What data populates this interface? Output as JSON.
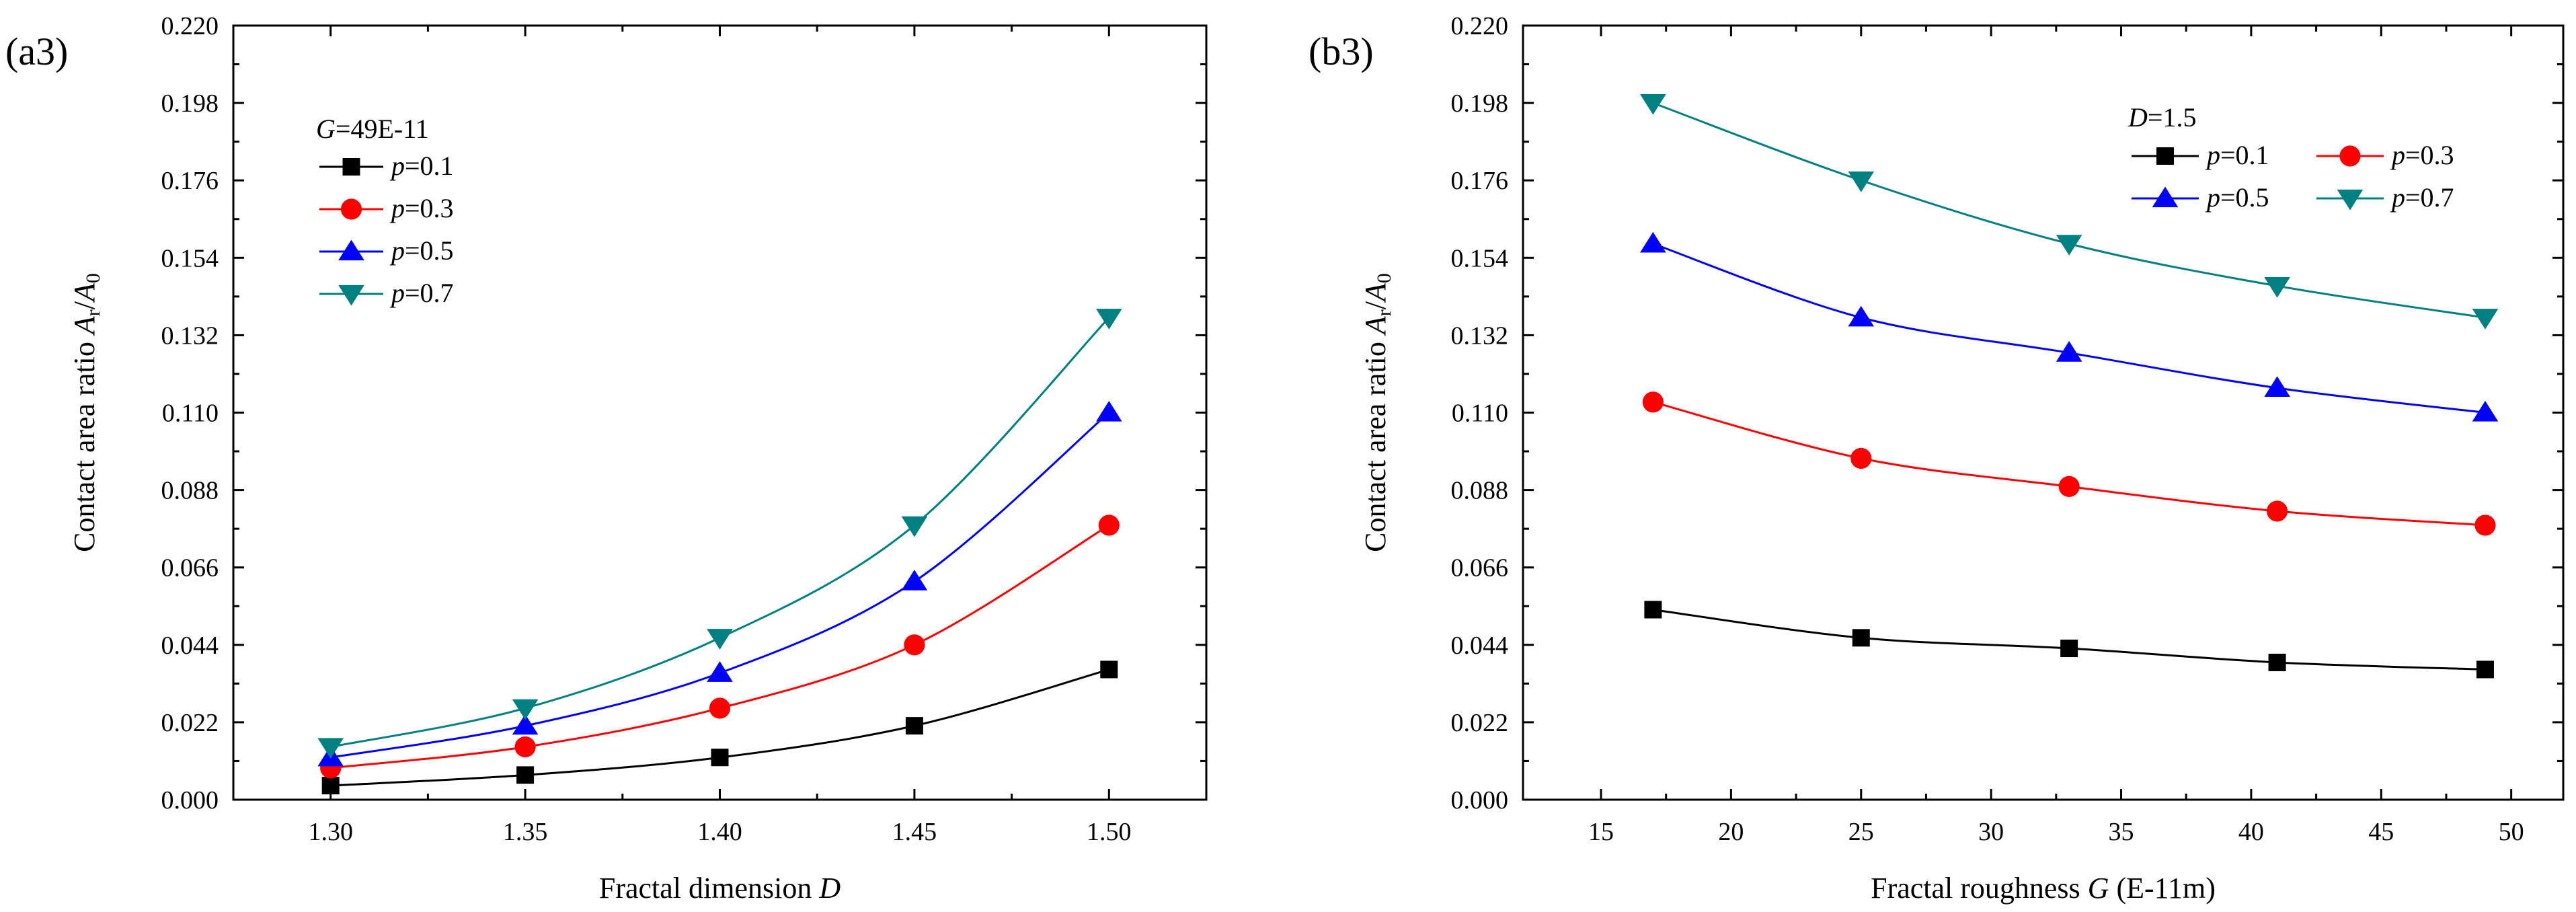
{
  "chart_data": [
    {
      "panel_label": "(a3)",
      "type": "line",
      "xlabel": {
        "main": "Fractal dimension ",
        "italic": "D",
        "suffix": ""
      },
      "ylabel": {
        "main": "Contact area ratio ",
        "a": "A",
        "asub": "r",
        "slash": "/",
        "b": "A",
        "bsub": "0"
      },
      "xlim": [
        1.275,
        1.525
      ],
      "ylim": [
        0.0,
        0.22
      ],
      "xticks": [
        1.3,
        1.35,
        1.4,
        1.45,
        1.5
      ],
      "xtick_labels": [
        "1.30",
        "1.35",
        "1.40",
        "1.45",
        "1.50"
      ],
      "yticks": [
        0.0,
        0.022,
        0.044,
        0.066,
        0.088,
        0.11,
        0.132,
        0.154,
        0.176,
        0.198,
        0.22
      ],
      "ytick_labels": [
        "0.000",
        "0.022",
        "0.044",
        "0.066",
        "0.088",
        "0.110",
        "0.132",
        "0.154",
        "0.176",
        "0.198",
        "0.220"
      ],
      "legend_title": {
        "italic": "G",
        "text": "=49E-11"
      },
      "legend_columns": 1,
      "x": [
        1.3,
        1.35,
        1.4,
        1.45,
        1.5
      ],
      "series": [
        {
          "name_italic": "p",
          "name_text": "=0.1",
          "marker": "square",
          "color": "#000000",
          "values": [
            0.004,
            0.007,
            0.012,
            0.021,
            0.037
          ]
        },
        {
          "name_italic": "p",
          "name_text": "=0.3",
          "marker": "circle",
          "color": "#ff0000",
          "values": [
            0.009,
            0.015,
            0.026,
            0.044,
            0.078
          ]
        },
        {
          "name_italic": "p",
          "name_text": "=0.5",
          "marker": "triangle-up",
          "color": "#0000ff",
          "values": [
            0.012,
            0.021,
            0.036,
            0.062,
            0.11
          ]
        },
        {
          "name_italic": "p",
          "name_text": "=0.7",
          "marker": "triangle-down",
          "color": "#008080",
          "values": [
            0.015,
            0.026,
            0.046,
            0.078,
            0.137
          ]
        }
      ]
    },
    {
      "panel_label": "(b3)",
      "type": "line",
      "xlabel": {
        "main": "Fractal roughness ",
        "italic": "G",
        "suffix": " (E-11m)"
      },
      "ylabel": {
        "main": "Contact area ratio ",
        "a": "A",
        "asub": "r",
        "slash": "/",
        "b": "A",
        "bsub": "0"
      },
      "xlim": [
        12,
        52
      ],
      "ylim": [
        0.0,
        0.22
      ],
      "xticks": [
        15,
        20,
        25,
        30,
        35,
        40,
        45,
        50
      ],
      "xtick_labels": [
        "15",
        "20",
        "25",
        "30",
        "35",
        "40",
        "45",
        "50"
      ],
      "yticks": [
        0.0,
        0.022,
        0.044,
        0.066,
        0.088,
        0.11,
        0.132,
        0.154,
        0.176,
        0.198,
        0.22
      ],
      "ytick_labels": [
        "0.000",
        "0.022",
        "0.044",
        "0.066",
        "0.088",
        "0.110",
        "0.132",
        "0.154",
        "0.176",
        "0.198",
        "0.220"
      ],
      "legend_title": {
        "italic": "D",
        "text": "=1.5"
      },
      "legend_columns": 2,
      "x": [
        17,
        25,
        33,
        41,
        49
      ],
      "series": [
        {
          "name_italic": "p",
          "name_text": "=0.1",
          "marker": "square",
          "color": "#000000",
          "values": [
            0.054,
            0.046,
            0.043,
            0.039,
            0.037
          ]
        },
        {
          "name_italic": "p",
          "name_text": "=0.3",
          "marker": "circle",
          "color": "#ff0000",
          "values": [
            0.113,
            0.097,
            0.089,
            0.082,
            0.078
          ]
        },
        {
          "name_italic": "p",
          "name_text": "=0.5",
          "marker": "triangle-up",
          "color": "#0000ff",
          "values": [
            0.158,
            0.137,
            0.127,
            0.117,
            0.11
          ]
        },
        {
          "name_italic": "p",
          "name_text": "=0.7",
          "marker": "triangle-down",
          "color": "#008080",
          "values": [
            0.198,
            0.176,
            0.158,
            0.146,
            0.137
          ]
        }
      ]
    }
  ]
}
